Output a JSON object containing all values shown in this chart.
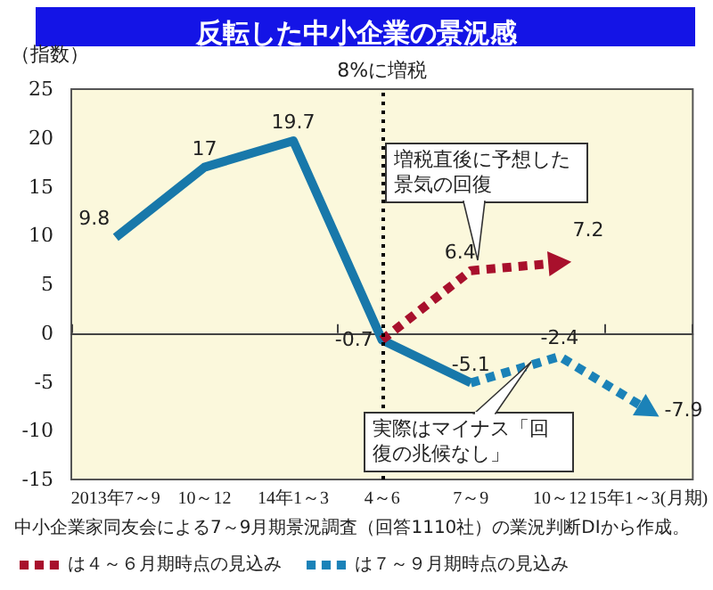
{
  "chart_data": {
    "type": "line",
    "title": "反転した中小企業の景況感",
    "ylabel": "（指数）",
    "categories": [
      "2013年7～9",
      "10～12",
      "14年1～3",
      "4～6",
      "7～9",
      "10～12",
      "15年1～3(月期)"
    ],
    "series": [
      {
        "color": "#1878aa",
        "values": [
          9.8,
          17,
          19.7,
          -0.7,
          -5.1,
          null,
          null
        ],
        "value_labels": [
          "9.8",
          "17",
          "19.7",
          "-0.7",
          "-5.1",
          null,
          null
        ],
        "line_style": "solid"
      },
      {
        "name": "は４～６月期時点の見込み",
        "color": "#a8102c",
        "values": [
          null,
          null,
          null,
          -0.7,
          6.4,
          7.2,
          null
        ],
        "value_labels": [
          null,
          null,
          null,
          null,
          "6.4",
          "7.2",
          null
        ],
        "line_style": "dashed"
      },
      {
        "name": "は７～９月期時点の見込み",
        "color": "#1b82b8",
        "values": [
          null,
          null,
          null,
          null,
          -5.1,
          -2.4,
          -7.9
        ],
        "value_labels": [
          null,
          null,
          null,
          null,
          null,
          "-2.4",
          "-7.9"
        ],
        "line_style": "dashed"
      }
    ],
    "ylim": [
      -15,
      25
    ],
    "yticks": [
      -15,
      -10,
      -5,
      0,
      5,
      10,
      15,
      20,
      25
    ],
    "grid": false,
    "legend": "bottom",
    "ref_lines": [
      {
        "axis": "x",
        "value": "4～6",
        "label": "8%に増税",
        "color": "#000000",
        "line_style": "dotted"
      }
    ],
    "annotations": [
      "増税直後に予想した景気の回復",
      "実際はマイナス「回復の兆候なし」",
      "中小企業家同友会による7～9月期景況調査（回答1110社）の業況判断DIから作成。"
    ]
  }
}
